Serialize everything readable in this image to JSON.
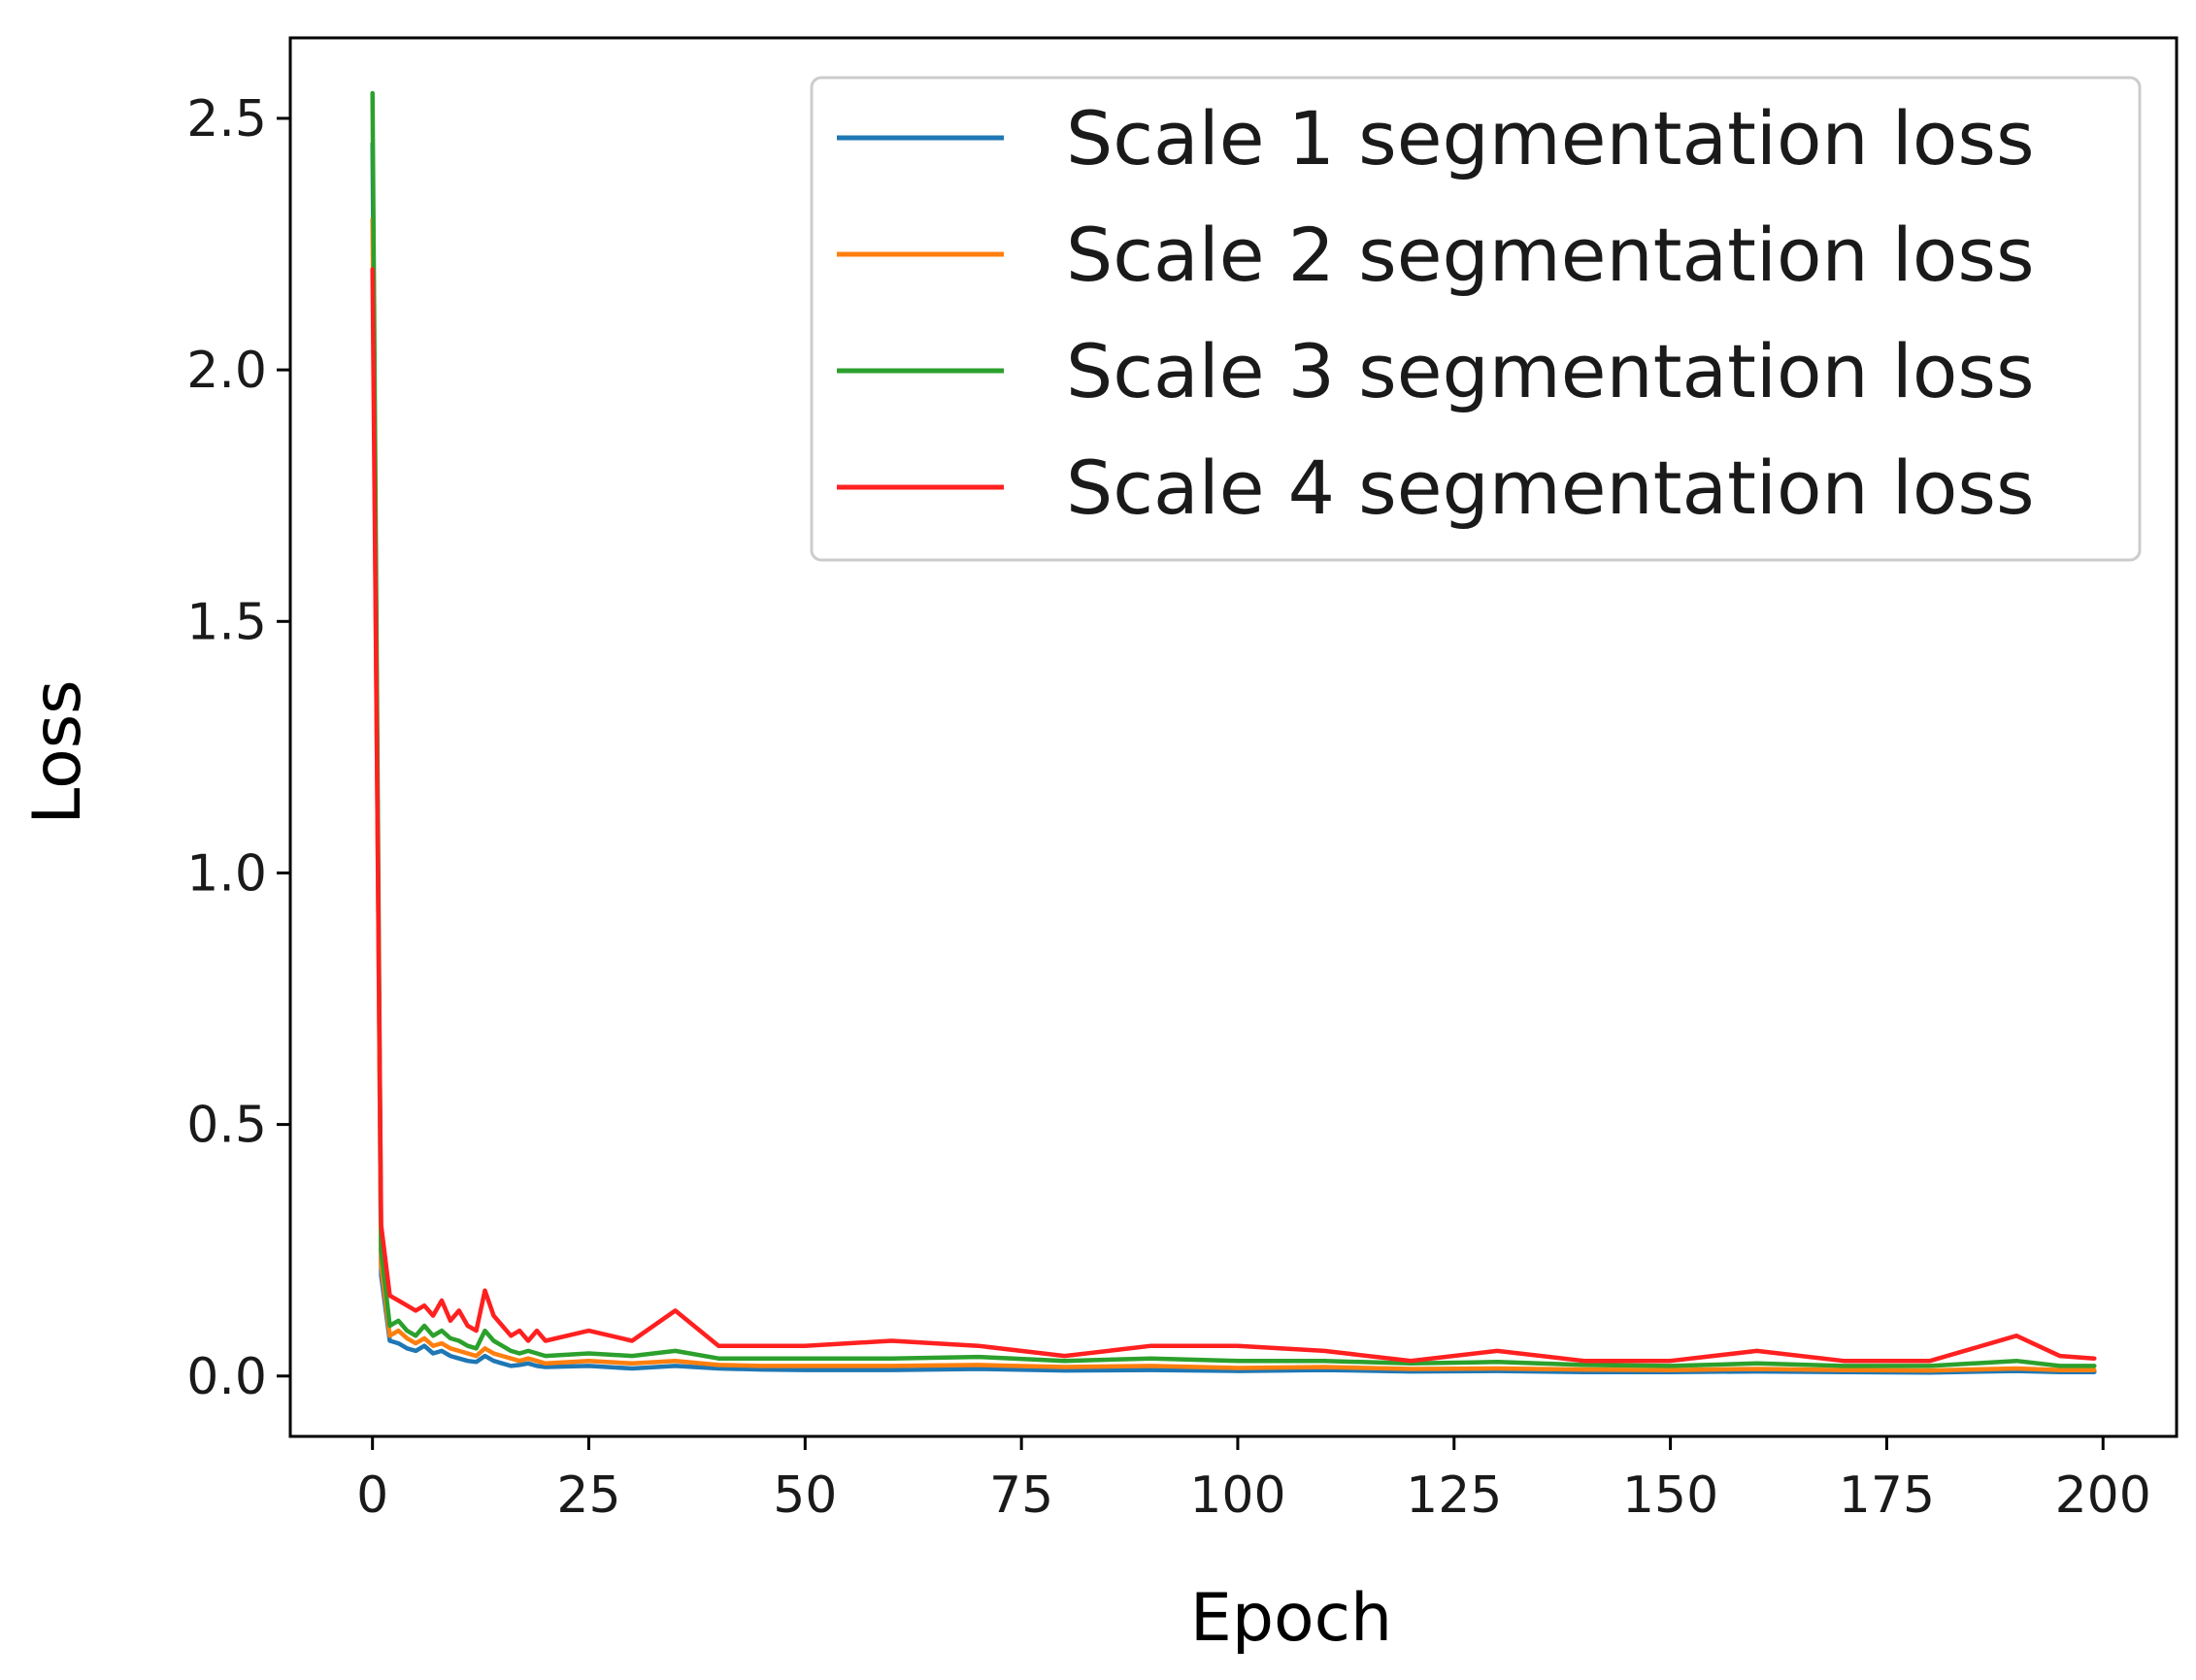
{
  "chart_data": {
    "type": "line",
    "title": "",
    "xlabel": "Epoch",
    "ylabel": "Loss",
    "xlim": [
      -9.5,
      208.5
    ],
    "ylim": [
      -0.12,
      2.66
    ],
    "xticks": [
      0,
      25,
      50,
      75,
      100,
      125,
      150,
      175,
      200
    ],
    "yticks": [
      0.0,
      0.5,
      1.0,
      1.5,
      2.0,
      2.5
    ],
    "xtick_labels": [
      "0",
      "25",
      "50",
      "75",
      "100",
      "125",
      "150",
      "175",
      "200"
    ],
    "ytick_labels": [
      "0.0",
      "0.5",
      "1.0",
      "1.5",
      "2.0",
      "2.5"
    ],
    "grid": false,
    "legend_position": "top-right",
    "series": [
      {
        "name": "Scale 1 segmentation loss",
        "color": "#1f77b4",
        "x": [
          0,
          1,
          2,
          3,
          4,
          5,
          6,
          7,
          8,
          9,
          10,
          11,
          12,
          13,
          14,
          15,
          16,
          17,
          18,
          19,
          20,
          25,
          30,
          35,
          40,
          45,
          50,
          60,
          70,
          80,
          90,
          100,
          110,
          120,
          130,
          140,
          150,
          160,
          170,
          180,
          190,
          195,
          199
        ],
        "y": [
          2.45,
          0.2,
          0.07,
          0.065,
          0.055,
          0.05,
          0.06,
          0.045,
          0.05,
          0.04,
          0.035,
          0.03,
          0.028,
          0.04,
          0.03,
          0.025,
          0.02,
          0.022,
          0.025,
          0.02,
          0.018,
          0.02,
          0.015,
          0.02,
          0.015,
          0.013,
          0.012,
          0.012,
          0.014,
          0.011,
          0.012,
          0.01,
          0.012,
          0.009,
          0.01,
          0.008,
          0.008,
          0.009,
          0.008,
          0.007,
          0.01,
          0.008,
          0.008
        ]
      },
      {
        "name": "Scale 2 segmentation loss",
        "color": "#ff7f0e",
        "x": [
          0,
          1,
          2,
          3,
          4,
          5,
          6,
          7,
          8,
          9,
          10,
          11,
          12,
          13,
          14,
          15,
          16,
          17,
          18,
          19,
          20,
          25,
          30,
          35,
          40,
          45,
          50,
          60,
          70,
          80,
          90,
          100,
          110,
          120,
          130,
          140,
          150,
          160,
          170,
          180,
          190,
          195,
          199
        ],
        "y": [
          2.3,
          0.22,
          0.08,
          0.09,
          0.075,
          0.065,
          0.075,
          0.06,
          0.065,
          0.055,
          0.05,
          0.045,
          0.04,
          0.055,
          0.045,
          0.04,
          0.035,
          0.03,
          0.035,
          0.03,
          0.025,
          0.03,
          0.025,
          0.03,
          0.022,
          0.02,
          0.02,
          0.02,
          0.022,
          0.018,
          0.02,
          0.016,
          0.018,
          0.014,
          0.015,
          0.013,
          0.012,
          0.014,
          0.012,
          0.011,
          0.015,
          0.012,
          0.012
        ]
      },
      {
        "name": "Scale 3 segmentation loss",
        "color": "#2ca02c",
        "x": [
          0,
          1,
          2,
          3,
          4,
          5,
          6,
          7,
          8,
          9,
          10,
          11,
          12,
          13,
          14,
          15,
          16,
          17,
          18,
          19,
          20,
          25,
          30,
          35,
          40,
          45,
          50,
          60,
          70,
          80,
          90,
          100,
          110,
          120,
          130,
          140,
          150,
          160,
          170,
          180,
          190,
          195,
          199
        ],
        "y": [
          2.55,
          0.25,
          0.1,
          0.11,
          0.09,
          0.08,
          0.1,
          0.08,
          0.09,
          0.075,
          0.07,
          0.06,
          0.055,
          0.09,
          0.07,
          0.06,
          0.05,
          0.045,
          0.05,
          0.045,
          0.04,
          0.045,
          0.04,
          0.05,
          0.035,
          0.035,
          0.035,
          0.035,
          0.038,
          0.03,
          0.035,
          0.03,
          0.03,
          0.025,
          0.028,
          0.022,
          0.02,
          0.025,
          0.02,
          0.02,
          0.03,
          0.02,
          0.02
        ]
      },
      {
        "name": "Scale 4 segmentation loss",
        "color": "#ff2020",
        "x": [
          0,
          1,
          2,
          3,
          4,
          5,
          6,
          7,
          8,
          9,
          10,
          11,
          12,
          13,
          14,
          15,
          16,
          17,
          18,
          19,
          20,
          25,
          30,
          35,
          40,
          45,
          50,
          60,
          70,
          80,
          90,
          100,
          110,
          120,
          130,
          140,
          150,
          160,
          170,
          180,
          190,
          195,
          199
        ],
        "y": [
          2.2,
          0.3,
          0.16,
          0.15,
          0.14,
          0.13,
          0.14,
          0.12,
          0.15,
          0.11,
          0.13,
          0.1,
          0.09,
          0.17,
          0.12,
          0.1,
          0.08,
          0.09,
          0.07,
          0.09,
          0.07,
          0.09,
          0.07,
          0.13,
          0.06,
          0.06,
          0.06,
          0.07,
          0.06,
          0.04,
          0.06,
          0.06,
          0.05,
          0.03,
          0.05,
          0.03,
          0.03,
          0.05,
          0.03,
          0.03,
          0.08,
          0.04,
          0.035
        ]
      }
    ]
  }
}
